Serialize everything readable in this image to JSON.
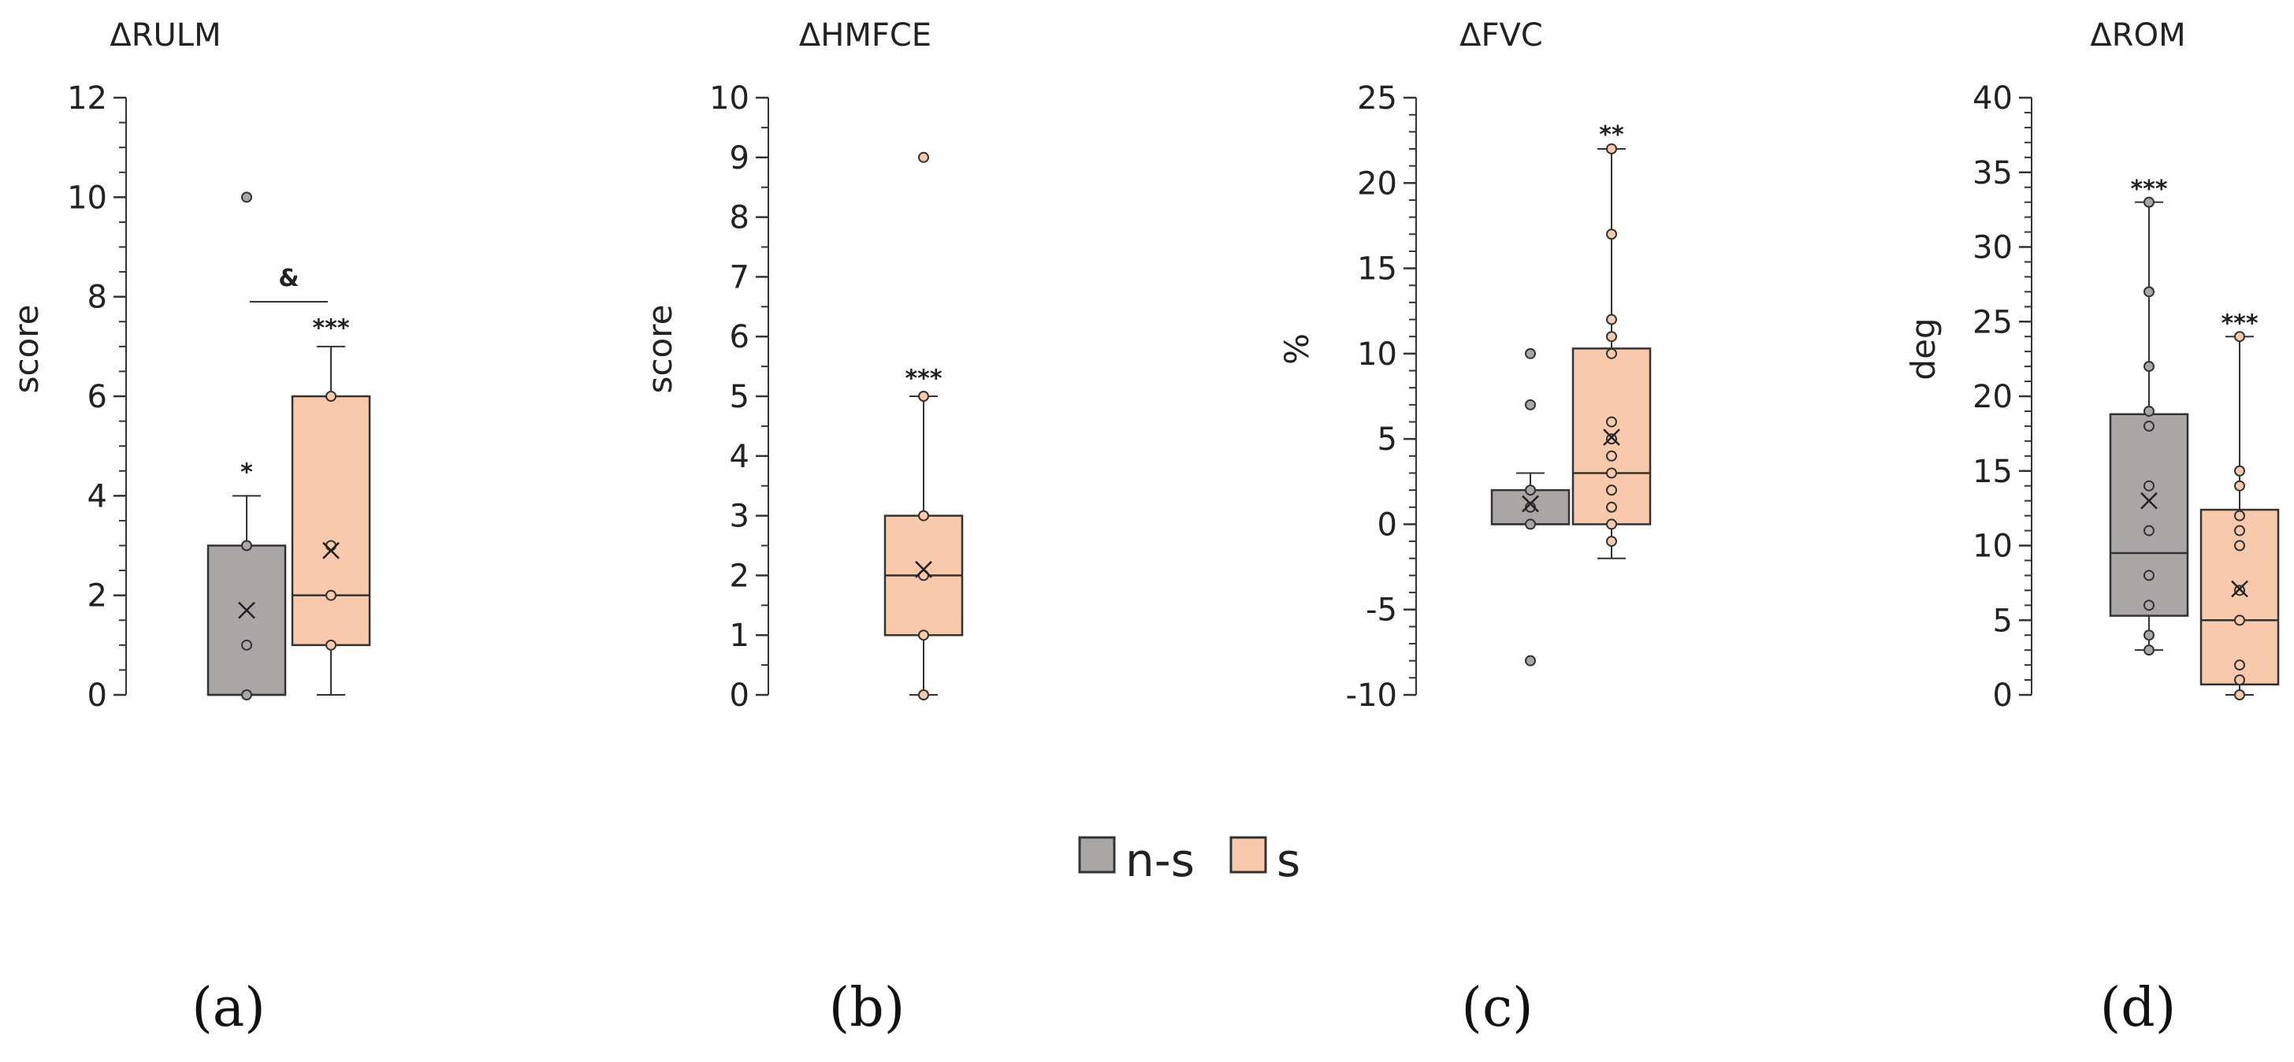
{
  "legend": {
    "entries": [
      {
        "label": "n-s",
        "color": "#aaa6a6"
      },
      {
        "label": "s",
        "color": "#f8c9ab"
      }
    ]
  },
  "chart_data": [
    {
      "type": "box",
      "panel_label": "(a)",
      "title": "ΔRULM",
      "ylabel": "score",
      "ylim": [
        0,
        12
      ],
      "major_step": 2,
      "minor_step": 0.5,
      "ticks": [
        0,
        2,
        4,
        6,
        8,
        10,
        12
      ],
      "tick_labels": [
        "0",
        "2",
        "4",
        "6",
        "8",
        "10",
        "12"
      ],
      "series": [
        {
          "name": "n-s",
          "slot": 0,
          "color": "#aaa6a6",
          "q1": 0,
          "median": 0,
          "q3": 3,
          "whisker_low": 0,
          "whisker_high": 4,
          "mean": 1.7,
          "points": [
            0,
            1,
            3,
            10
          ],
          "significance": "*",
          "sig_at": 4.6
        },
        {
          "name": "s",
          "slot": 1,
          "color": "#f8c9ab",
          "q1": 1,
          "median": 2,
          "q3": 6,
          "whisker_low": 0,
          "whisker_high": 7,
          "mean": 2.9,
          "points": [
            1,
            2,
            3,
            6
          ],
          "significance": "***",
          "sig_at": 7.5
        }
      ],
      "comparison": {
        "label": "&",
        "y": 7.9
      }
    },
    {
      "type": "box",
      "panel_label": "(b)",
      "title": "ΔHMFCE",
      "ylabel": "score",
      "ylim": [
        0,
        10
      ],
      "major_step": 1,
      "minor_step": 0.5,
      "ticks": [
        0,
        1,
        2,
        3,
        4,
        5,
        6,
        7,
        8,
        9,
        10
      ],
      "tick_labels": [
        "0",
        "1",
        "2",
        "3",
        "4",
        "5",
        "6",
        "7",
        "8",
        "9",
        "10"
      ],
      "series": [
        {
          "name": "s",
          "slot": 1,
          "color": "#f8c9ab",
          "q1": 1,
          "median": 2,
          "q3": 3,
          "whisker_low": 0,
          "whisker_high": 5,
          "mean": 2.1,
          "points": [
            0,
            1,
            2,
            3,
            5,
            9
          ],
          "significance": "***",
          "sig_at": 5.4
        }
      ]
    },
    {
      "type": "box",
      "panel_label": "(c)",
      "title": "ΔFVC",
      "ylabel": "%",
      "ylim": [
        -10,
        25
      ],
      "major_step": 5,
      "minor_step": 1,
      "ticks": [
        -10,
        -5,
        0,
        5,
        10,
        15,
        20,
        25
      ],
      "tick_labels": [
        "-10",
        "-5",
        "0",
        "5",
        "10",
        "15",
        "20",
        "25"
      ],
      "series": [
        {
          "name": "n-s",
          "slot": 0,
          "color": "#aaa6a6",
          "q1": 0,
          "median": 0,
          "q3": 2,
          "whisker_low": 0,
          "whisker_high": 3,
          "mean": 1.2,
          "points": [
            -8,
            0,
            1,
            2,
            7,
            10
          ],
          "significance": "",
          "sig_at": 3
        },
        {
          "name": "s",
          "slot": 1,
          "color": "#f8c9ab",
          "q1": 0,
          "median": 3,
          "q3": 10.3,
          "whisker_low": -2,
          "whisker_high": 22,
          "mean": 5.1,
          "points": [
            -1,
            0,
            1,
            2,
            3,
            4,
            5,
            6,
            10,
            11,
            12,
            17,
            22
          ],
          "significance": "**",
          "sig_at": 23.2
        }
      ]
    },
    {
      "type": "box",
      "panel_label": "(d)",
      "title": "ΔROM",
      "ylabel": "deg",
      "ylim": [
        0,
        40
      ],
      "major_step": 5,
      "minor_step": 1,
      "ticks": [
        0,
        5,
        10,
        15,
        20,
        25,
        30,
        35,
        40
      ],
      "tick_labels": [
        "0",
        "5",
        "10",
        "15",
        "20",
        "25",
        "30",
        "35",
        "40"
      ],
      "series": [
        {
          "name": "n-s",
          "slot": 0,
          "color": "#aaa6a6",
          "q1": 5.3,
          "median": 9.5,
          "q3": 18.8,
          "whisker_low": 3,
          "whisker_high": 33,
          "mean": 13,
          "points": [
            3,
            4,
            6,
            8,
            11,
            14,
            18,
            19,
            22,
            27,
            33
          ],
          "significance": "***",
          "sig_at": 34.3
        },
        {
          "name": "s",
          "slot": 1,
          "color": "#f8c9ab",
          "q1": 0.7,
          "median": 5,
          "q3": 12.4,
          "whisker_low": 0,
          "whisker_high": 24,
          "mean": 7.1,
          "points": [
            0,
            1,
            2,
            5,
            7,
            10,
            11,
            12,
            14,
            15,
            24
          ],
          "significance": "***",
          "sig_at": 25.3
        }
      ]
    }
  ]
}
